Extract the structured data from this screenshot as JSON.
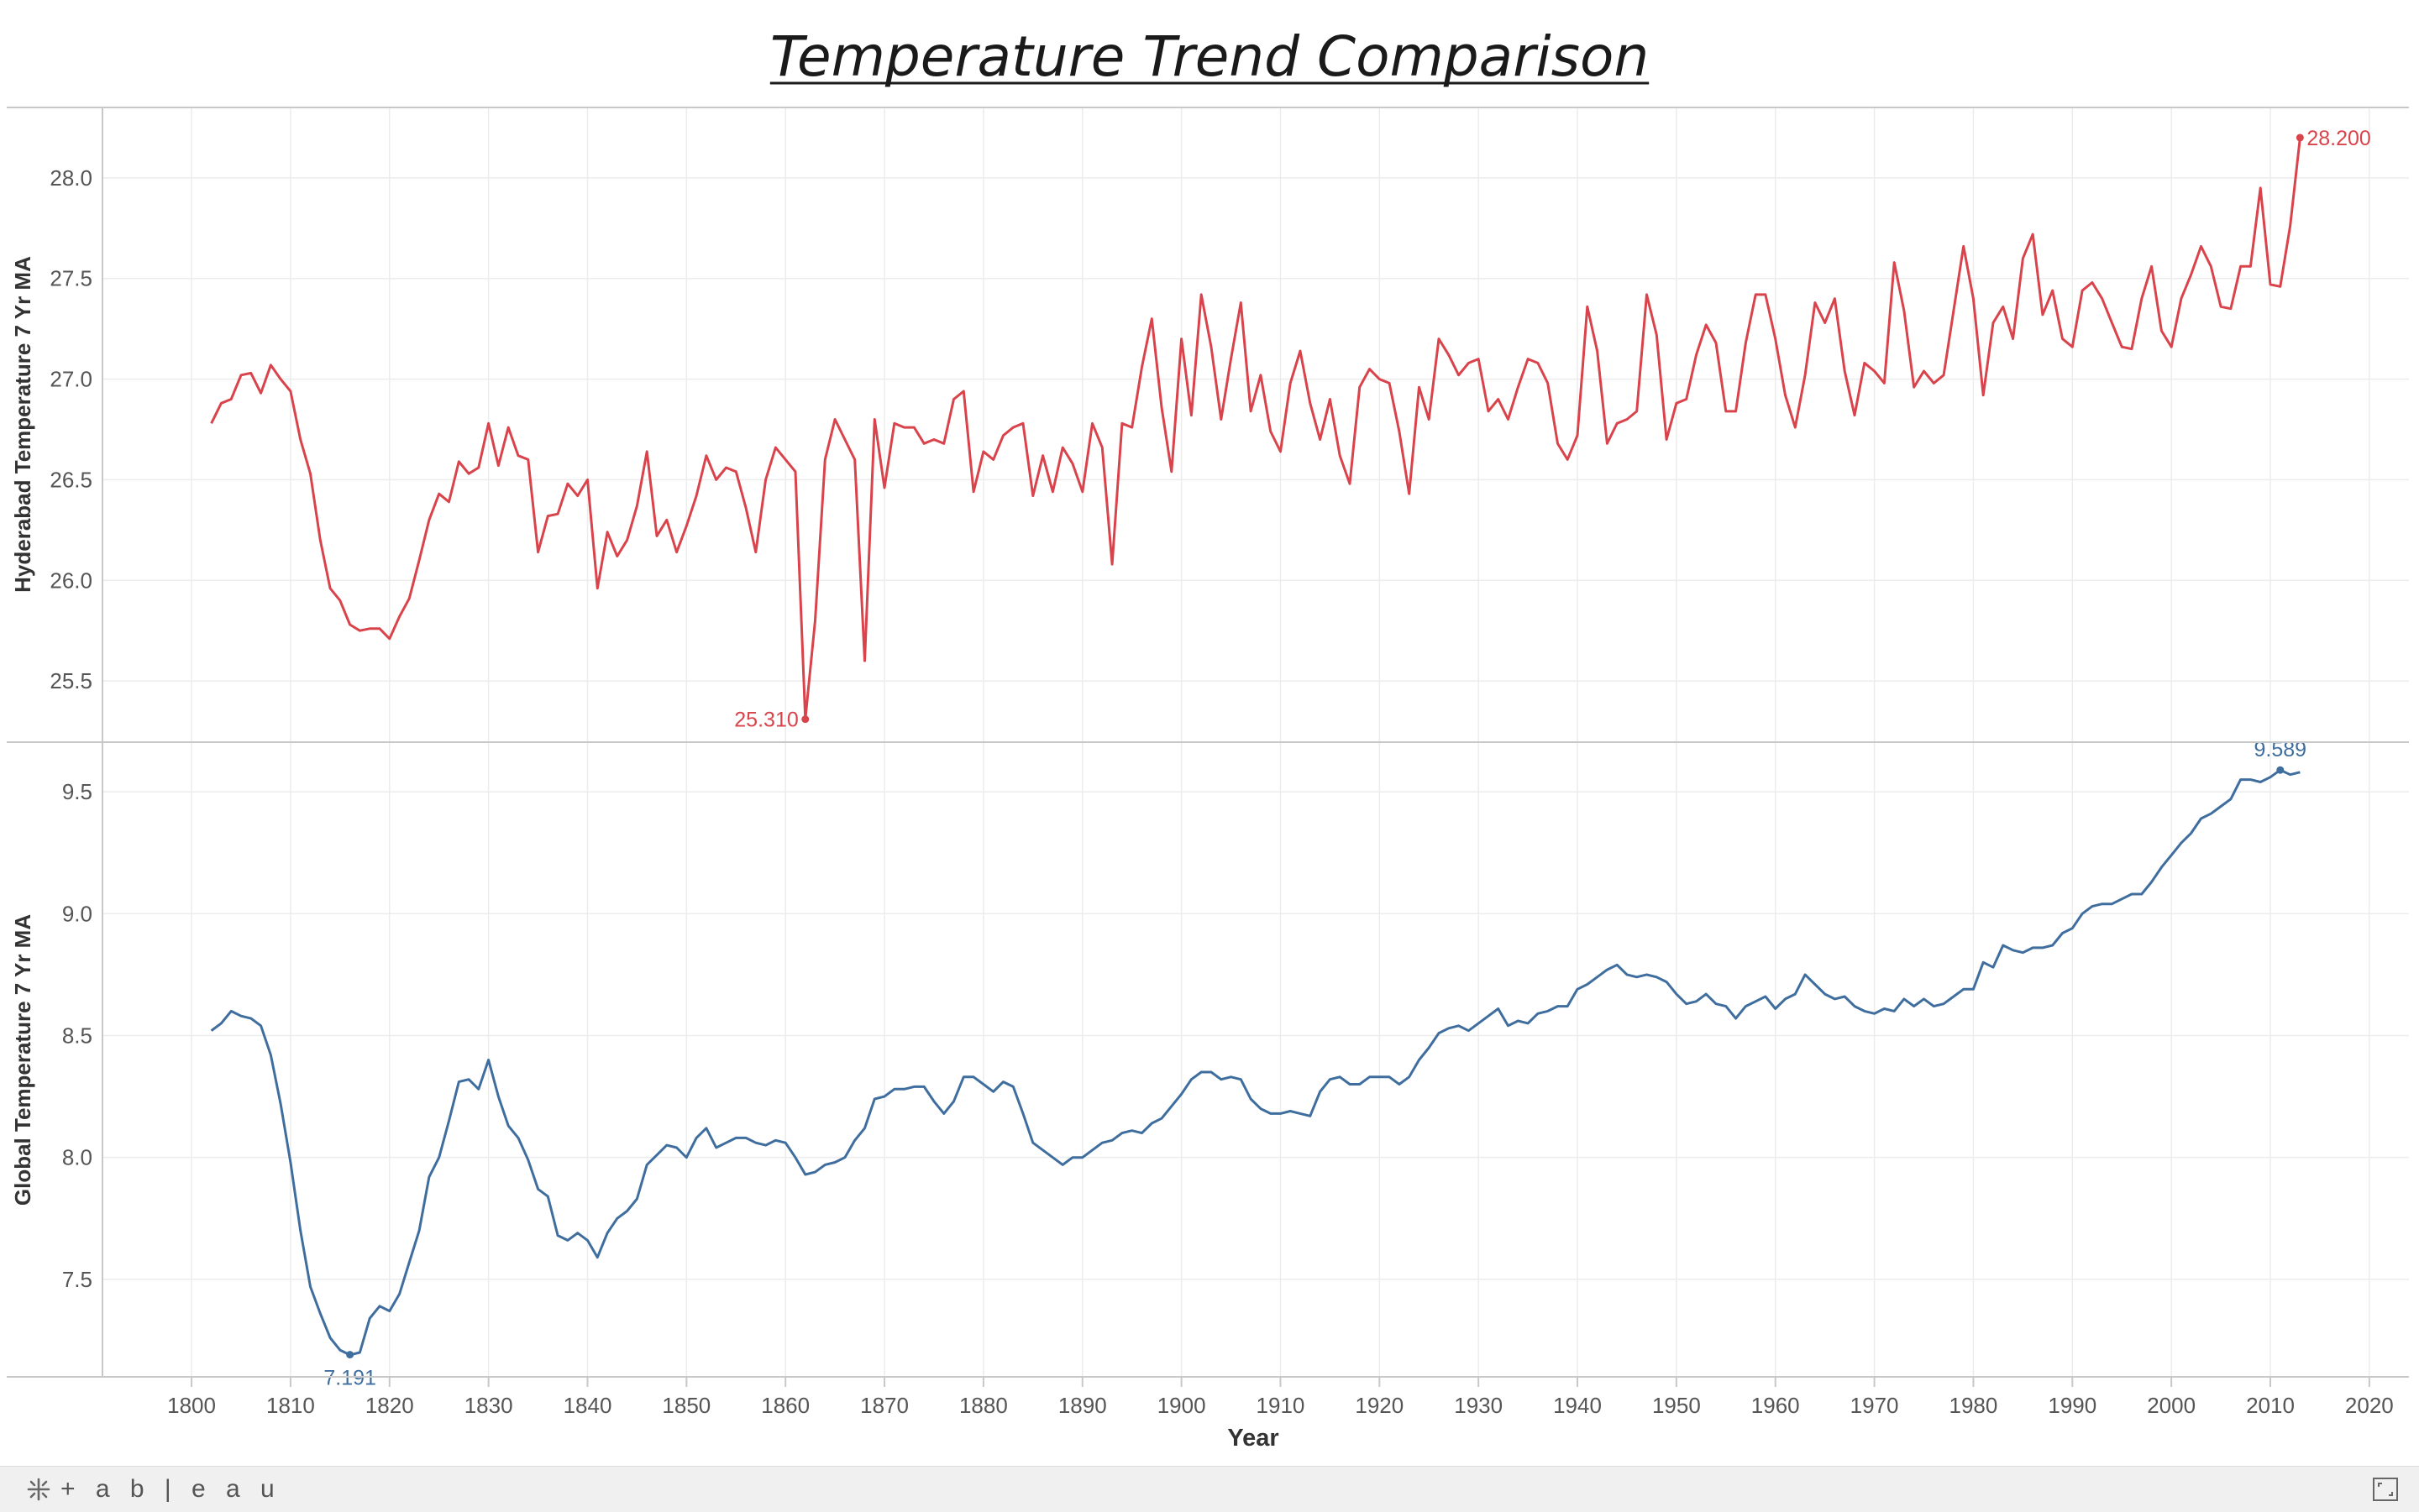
{
  "title": "Temperature Trend Comparison",
  "footer": {
    "brand": "+ a b | e a u",
    "fullscreen_icon": "fullscreen-icon",
    "logo_icon": "tableau-logo-icon"
  },
  "chart_data": [
    {
      "type": "line",
      "title": "Temperature Trend Comparison",
      "xlabel": "Year",
      "ylabel": "Hyderabad Temperature 7 Yr MA",
      "xlim": [
        1791,
        2024
      ],
      "ylim": [
        25.2,
        28.35
      ],
      "yticks": [
        25.5,
        26.0,
        26.5,
        27.0,
        27.5,
        28.0
      ],
      "xticks": [
        1800,
        1810,
        1820,
        1830,
        1840,
        1850,
        1860,
        1870,
        1880,
        1890,
        1900,
        1910,
        1920,
        1930,
        1940,
        1950,
        1960,
        1970,
        1980,
        1990,
        2000,
        2010,
        2020
      ],
      "grid": true,
      "color": "#d9434b",
      "annotations": [
        {
          "x": 1862,
          "y": 25.31,
          "label": "25.310",
          "pos": "left"
        },
        {
          "x": 2013,
          "y": 28.2,
          "label": "28.200",
          "pos": "right"
        }
      ],
      "series": [
        {
          "x_start": 1802,
          "values": [
            26.78,
            26.88,
            26.9,
            27.02,
            27.03,
            26.93,
            27.07,
            27.0,
            26.94,
            26.7,
            26.53,
            26.2,
            25.96,
            25.9,
            25.78,
            25.75,
            25.76,
            25.76,
            25.71,
            25.82,
            25.91,
            26.1,
            26.3,
            26.43,
            26.39,
            26.59,
            26.53,
            26.56,
            26.78,
            26.57,
            26.76,
            26.62,
            26.6,
            26.14,
            26.32,
            26.33,
            26.48,
            26.42,
            26.5,
            25.96,
            26.24,
            26.12,
            26.2,
            26.37,
            26.64,
            26.22,
            26.3,
            26.14,
            26.27,
            26.42,
            26.62,
            26.5,
            26.56,
            26.54,
            26.36,
            26.14,
            26.5,
            26.66,
            26.6,
            26.54,
            25.31,
            25.8,
            26.6,
            26.8,
            26.7,
            26.6,
            25.6,
            26.8,
            26.46,
            26.78,
            26.76,
            26.76,
            26.68,
            26.7,
            26.68,
            26.9,
            26.94,
            26.44,
            26.64,
            26.6,
            26.72,
            26.76,
            26.78,
            26.42,
            26.62,
            26.44,
            26.66,
            26.58,
            26.44,
            26.78,
            26.66,
            26.08,
            26.78,
            26.76,
            27.06,
            27.3,
            26.86,
            26.54,
            27.2,
            26.82,
            27.42,
            27.16,
            26.8,
            27.1,
            27.38,
            26.84,
            27.02,
            26.74,
            26.64,
            26.98,
            27.14,
            26.88,
            26.7,
            26.9,
            26.62,
            26.48,
            26.96,
            27.05,
            27.0,
            26.98,
            26.74,
            26.43,
            26.96,
            26.8,
            27.2,
            27.12,
            27.02,
            27.08,
            27.1,
            26.84,
            26.9,
            26.8,
            26.96,
            27.1,
            27.08,
            26.98,
            26.68,
            26.6,
            26.72,
            27.36,
            27.14,
            26.68,
            26.78,
            26.8,
            26.84,
            27.42,
            27.22,
            26.7,
            26.88,
            26.9,
            27.12,
            27.27,
            27.18,
            26.84,
            26.84,
            27.18,
            27.42,
            27.42,
            27.2,
            26.92,
            26.76,
            27.02,
            27.38,
            27.28,
            27.4,
            27.04,
            26.82,
            27.08,
            27.04,
            26.98,
            27.58,
            27.34,
            26.96,
            27.04,
            26.98,
            27.02,
            27.34,
            27.66,
            27.4,
            26.92,
            27.28,
            27.36,
            27.2,
            27.6,
            27.72,
            27.32,
            27.44,
            27.2,
            27.16,
            27.44,
            27.48,
            27.4,
            27.28,
            27.16,
            27.15,
            27.4,
            27.56,
            27.24,
            27.16,
            27.4,
            27.52,
            27.66,
            27.56,
            27.36,
            27.35,
            27.56,
            27.56,
            27.95,
            27.47,
            27.46,
            27.76,
            28.2
          ]
        }
      ]
    },
    {
      "type": "line",
      "xlabel": "Year",
      "ylabel": "Global Temperature 7 Yr MA",
      "xlim": [
        1791,
        2024
      ],
      "ylim": [
        7.1,
        9.7
      ],
      "yticks": [
        7.5,
        8.0,
        8.5,
        9.0,
        9.5
      ],
      "xticks": [
        1800,
        1810,
        1820,
        1830,
        1840,
        1850,
        1860,
        1870,
        1880,
        1890,
        1900,
        1910,
        1920,
        1930,
        1940,
        1950,
        1960,
        1970,
        1980,
        1990,
        2000,
        2010,
        2020
      ],
      "grid": true,
      "color": "#3f6e9e",
      "annotations": [
        {
          "x": 1816,
          "y": 7.191,
          "label": "7.191",
          "pos": "below"
        },
        {
          "x": 2011,
          "y": 9.589,
          "label": "9.589",
          "pos": "above"
        }
      ],
      "series": [
        {
          "x_start": 1802,
          "values": [
            8.52,
            8.55,
            8.6,
            8.58,
            8.57,
            8.54,
            8.42,
            8.22,
            7.98,
            7.7,
            7.47,
            7.36,
            7.26,
            7.21,
            7.19,
            7.2,
            7.34,
            7.39,
            7.37,
            7.44,
            7.57,
            7.7,
            7.92,
            8.0,
            8.15,
            8.31,
            8.32,
            8.28,
            8.4,
            8.25,
            8.13,
            8.08,
            7.99,
            7.87,
            7.84,
            7.68,
            7.66,
            7.69,
            7.66,
            7.59,
            7.69,
            7.75,
            7.78,
            7.83,
            7.97,
            8.01,
            8.05,
            8.04,
            8.0,
            8.08,
            8.12,
            8.04,
            8.06,
            8.08,
            8.08,
            8.06,
            8.05,
            8.07,
            8.06,
            8.0,
            7.93,
            7.94,
            7.97,
            7.98,
            8.0,
            8.07,
            8.12,
            8.24,
            8.25,
            8.28,
            8.28,
            8.29,
            8.29,
            8.23,
            8.18,
            8.23,
            8.33,
            8.33,
            8.3,
            8.27,
            8.31,
            8.29,
            8.18,
            8.06,
            8.03,
            8.0,
            7.97,
            8.0,
            8.0,
            8.03,
            8.06,
            8.07,
            8.1,
            8.11,
            8.1,
            8.14,
            8.16,
            8.21,
            8.26,
            8.32,
            8.35,
            8.35,
            8.32,
            8.33,
            8.32,
            8.24,
            8.2,
            8.18,
            8.18,
            8.19,
            8.18,
            8.17,
            8.27,
            8.32,
            8.33,
            8.3,
            8.3,
            8.33,
            8.33,
            8.33,
            8.3,
            8.33,
            8.4,
            8.45,
            8.51,
            8.53,
            8.54,
            8.52,
            8.55,
            8.58,
            8.61,
            8.54,
            8.56,
            8.55,
            8.59,
            8.6,
            8.62,
            8.62,
            8.69,
            8.71,
            8.74,
            8.77,
            8.79,
            8.75,
            8.74,
            8.75,
            8.74,
            8.72,
            8.67,
            8.63,
            8.64,
            8.67,
            8.63,
            8.62,
            8.57,
            8.62,
            8.64,
            8.66,
            8.61,
            8.65,
            8.67,
            8.75,
            8.71,
            8.67,
            8.65,
            8.66,
            8.62,
            8.6,
            8.59,
            8.61,
            8.6,
            8.65,
            8.62,
            8.65,
            8.62,
            8.63,
            8.66,
            8.69,
            8.69,
            8.8,
            8.78,
            8.87,
            8.85,
            8.84,
            8.86,
            8.86,
            8.87,
            8.92,
            8.94,
            9.0,
            9.03,
            9.04,
            9.04,
            9.06,
            9.08,
            9.08,
            9.13,
            9.19,
            9.24,
            9.29,
            9.33,
            9.39,
            9.41,
            9.44,
            9.47,
            9.55,
            9.55,
            9.54,
            9.56,
            9.589,
            9.57,
            9.58
          ]
        }
      ]
    }
  ]
}
